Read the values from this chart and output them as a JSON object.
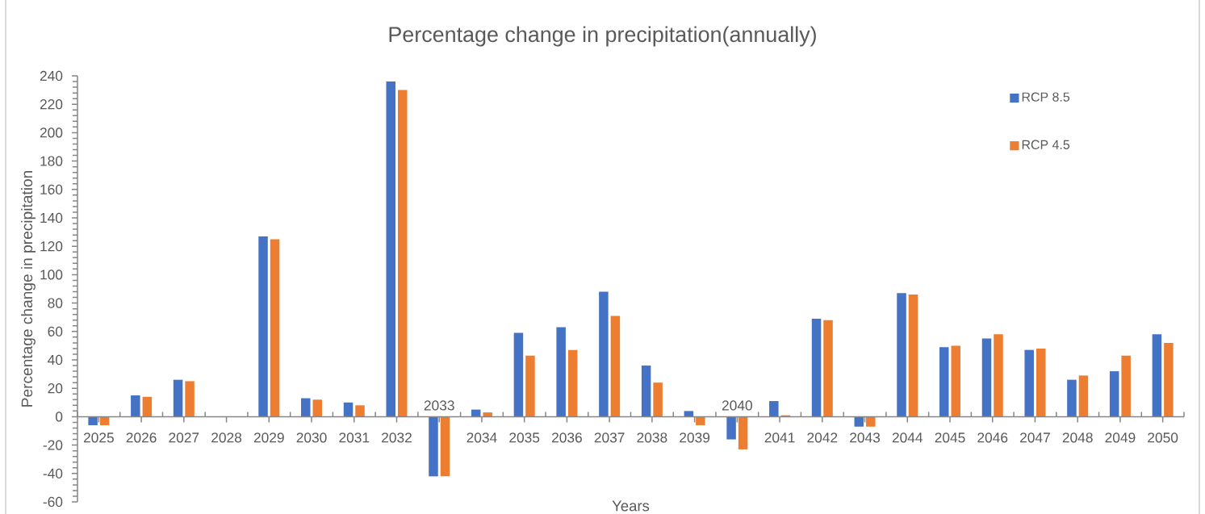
{
  "chart_data": {
    "type": "bar",
    "title": "Percentage change in precipitation(annually)",
    "xlabel": "Years",
    "ylabel": "Percentage change in precipitation",
    "categories": [
      "2025",
      "2026",
      "2027",
      "2028",
      "2029",
      "2030",
      "2031",
      "2032",
      "2033",
      "2034",
      "2035",
      "2036",
      "2037",
      "2038",
      "2039",
      "2040",
      "2041",
      "2042",
      "2043",
      "2044",
      "2045",
      "2046",
      "2047",
      "2048",
      "2049",
      "2050"
    ],
    "series": [
      {
        "name": "RCP 8.5",
        "color": "#4472c4",
        "values": [
          -6,
          15,
          26,
          null,
          127,
          13,
          10,
          236,
          -42,
          5,
          59,
          63,
          88,
          36,
          4,
          -16,
          11,
          69,
          -7,
          87,
          49,
          55,
          47,
          26,
          32,
          58
        ]
      },
      {
        "name": "RCP 4.5",
        "color": "#ed7d31",
        "values": [
          -6,
          14,
          25,
          null,
          125,
          12,
          8,
          230,
          -42,
          3,
          43,
          47,
          71,
          24,
          -6,
          -23,
          1,
          68,
          -7,
          86,
          50,
          58,
          48,
          29,
          43,
          52
        ]
      }
    ],
    "ylim": [
      -60,
      240
    ],
    "yticks": [
      -60,
      -40,
      -20,
      0,
      20,
      40,
      60,
      80,
      100,
      120,
      140,
      160,
      180,
      200,
      220,
      240
    ],
    "legend": "top right"
  }
}
